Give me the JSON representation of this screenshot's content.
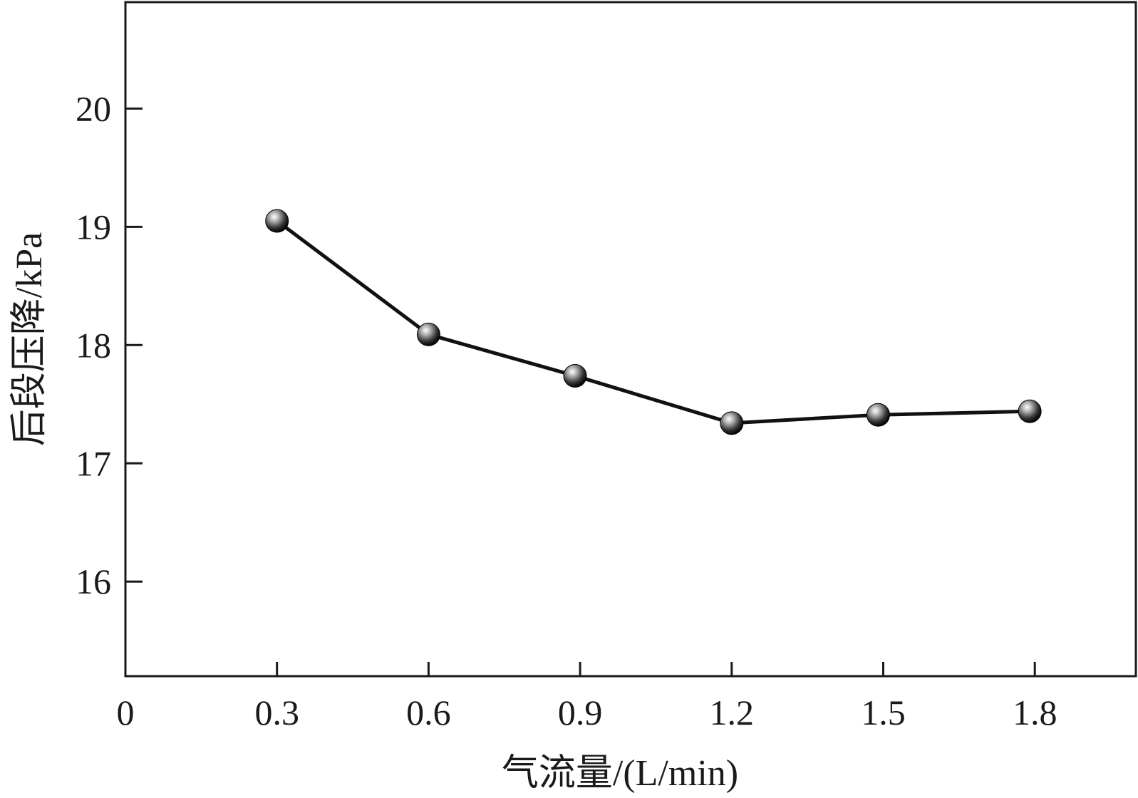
{
  "chart_data": {
    "type": "line",
    "title": "",
    "xlabel": "气流量/(L/min)",
    "ylabel": "后段压降/kPa",
    "xlim": [
      0,
      2.0
    ],
    "ylim": [
      15.2,
      20.9
    ],
    "xticks": [
      0,
      0.3,
      0.6,
      0.9,
      1.2,
      1.5,
      1.8
    ],
    "xtick_labels": [
      "0",
      "0.3",
      "0.6",
      "0.9",
      "1.2",
      "1.5",
      "1.8"
    ],
    "yticks": [
      16,
      17,
      18,
      19,
      20
    ],
    "ytick_labels": [
      "16",
      "17",
      "18",
      "19",
      "20"
    ],
    "grid": false,
    "legend": "none",
    "series": [
      {
        "x": [
          0.3,
          0.6,
          0.89,
          1.2,
          1.49,
          1.79
        ],
        "y": [
          19.05,
          18.09,
          17.74,
          17.34,
          17.41,
          17.44
        ],
        "color": "#111111",
        "marker": "sphere"
      }
    ]
  }
}
